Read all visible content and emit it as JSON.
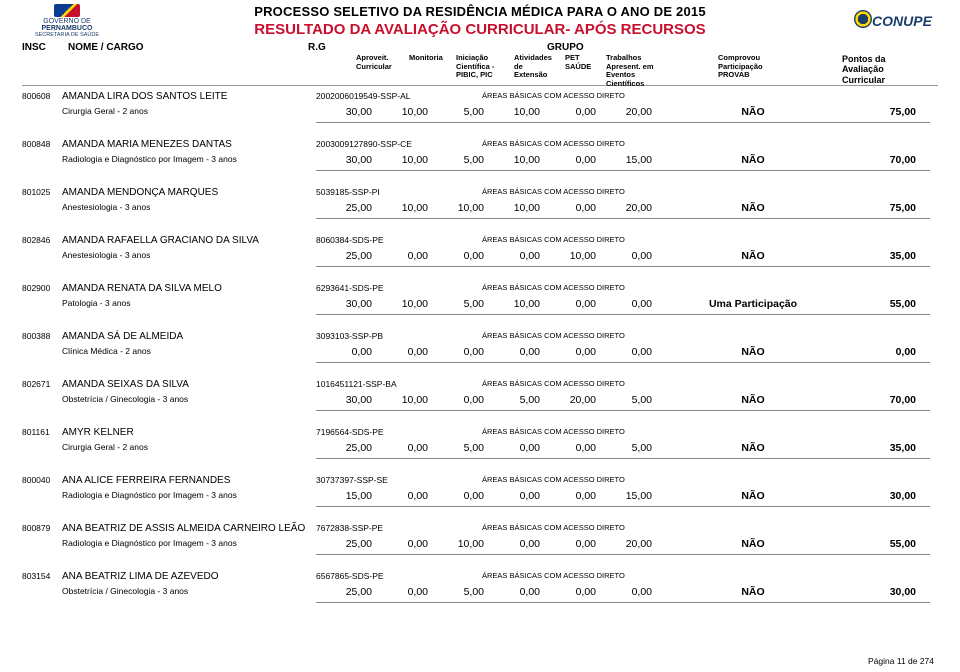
{
  "header": {
    "title1": "PROCESSO SELETIVO DA RESIDÊNCIA MÉDICA  PARA O ANO DE 2015",
    "title2": "RESULTADO DA AVALIAÇÃO CURRICULAR- APÓS RECURSOS",
    "left_logo_line1": "GOVERNO DE",
    "left_logo_line2": "PERNAMBUCO",
    "left_logo_line3": "SECRETARIA DE SAÚDE",
    "right_logo": "CONUPE"
  },
  "columns": {
    "insc": "INSC",
    "nome": "NOME / CARGO",
    "rg": "R.G",
    "grupo": "GRUPO",
    "aproveit": "Aproveit. Curricular",
    "monitoria": "Monitoria",
    "iniciacao": "Iniciação Científica - PIBIC, PIC",
    "atividades": "Atividades de Extensão",
    "pet": "PET SAÚDE",
    "trabalhos": "Trabalhos Apresent. em Eventos Científicos",
    "comprovou": "Comprovou Participação PROVAB",
    "pontos": "Pontos da Avaliação Curricular"
  },
  "areas_label": "ÁREAS BÁSICAS COM ACESSO DIRETO",
  "footer": "Página 11 de 274",
  "rows": [
    {
      "insc": "800608",
      "name": "AMANDA LIRA DOS SANTOS LEITE",
      "doc": "2002006019549-SSP-AL",
      "cargo": "Cirurgia Geral - 2 anos",
      "v": [
        "30,00",
        "10,00",
        "5,00",
        "10,00",
        "0,00",
        "20,00"
      ],
      "provab": "NÃO",
      "total": "75,00"
    },
    {
      "insc": "800848",
      "name": "AMANDA MARIA MENEZES DANTAS",
      "doc": "2003009127890-SSP-CE",
      "cargo": "Radiologia e Diagnóstico por Imagem - 3 anos",
      "v": [
        "30,00",
        "10,00",
        "5,00",
        "10,00",
        "0,00",
        "15,00"
      ],
      "provab": "NÃO",
      "total": "70,00"
    },
    {
      "insc": "801025",
      "name": "AMANDA MENDONÇA MARQUES",
      "doc": "5039185-SSP-PI",
      "cargo": "Anestesiologia - 3 anos",
      "v": [
        "25,00",
        "10,00",
        "10,00",
        "10,00",
        "0,00",
        "20,00"
      ],
      "provab": "NÃO",
      "total": "75,00"
    },
    {
      "insc": "802846",
      "name": "AMANDA RAFAELLA GRACIANO DA SILVA",
      "doc": "8060384-SDS-PE",
      "cargo": "Anestesiologia - 3 anos",
      "v": [
        "25,00",
        "0,00",
        "0,00",
        "0,00",
        "10,00",
        "0,00"
      ],
      "provab": "NÃO",
      "total": "35,00"
    },
    {
      "insc": "802900",
      "name": "AMANDA RENATA DA SILVA MELO",
      "doc": "6293641-SDS-PE",
      "cargo": "Patologia - 3 anos",
      "v": [
        "30,00",
        "10,00",
        "5,00",
        "10,00",
        "0,00",
        "0,00"
      ],
      "provab": "Uma Participação",
      "total": "55,00"
    },
    {
      "insc": "800388",
      "name": "AMANDA SÁ DE ALMEIDA",
      "doc": "3093103-SSP-PB",
      "cargo": "Clínica Médica - 2 anos",
      "v": [
        "0,00",
        "0,00",
        "0,00",
        "0,00",
        "0,00",
        "0,00"
      ],
      "provab": "NÃO",
      "total": "0,00"
    },
    {
      "insc": "802671",
      "name": "AMANDA SEIXAS DA SILVA",
      "doc": "1016451121-SSP-BA",
      "cargo": "Obstetrícia / Ginecologia - 3 anos",
      "v": [
        "30,00",
        "10,00",
        "0,00",
        "5,00",
        "20,00",
        "5,00"
      ],
      "provab": "NÃO",
      "total": "70,00"
    },
    {
      "insc": "801161",
      "name": "AMYR KELNER",
      "doc": "7196564-SDS-PE",
      "cargo": "Cirurgia Geral - 2 anos",
      "v": [
        "25,00",
        "0,00",
        "5,00",
        "0,00",
        "0,00",
        "5,00"
      ],
      "provab": "NÃO",
      "total": "35,00"
    },
    {
      "insc": "800040",
      "name": "ANA ALICE FERREIRA FERNANDES",
      "doc": "30737397-SSP-SE",
      "cargo": "Radiologia e Diagnóstico por Imagem - 3 anos",
      "v": [
        "15,00",
        "0,00",
        "0,00",
        "0,00",
        "0,00",
        "15,00"
      ],
      "provab": "NÃO",
      "total": "30,00"
    },
    {
      "insc": "800879",
      "name": "ANA BEATRIZ DE ASSIS ALMEIDA CARNEIRO LEÃO",
      "doc": "7672838-SSP-PE",
      "cargo": "Radiologia e Diagnóstico por Imagem - 3 anos",
      "v": [
        "25,00",
        "0,00",
        "10,00",
        "0,00",
        "0,00",
        "20,00"
      ],
      "provab": "NÃO",
      "total": "55,00"
    },
    {
      "insc": "803154",
      "name": "ANA BEATRIZ LIMA DE AZEVEDO",
      "doc": "6567865-SDS-PE",
      "cargo": "Obstetrícia / Ginecologia - 3 anos",
      "v": [
        "25,00",
        "0,00",
        "5,00",
        "0,00",
        "0,00",
        "0,00"
      ],
      "provab": "NÃO",
      "total": "30,00"
    }
  ]
}
